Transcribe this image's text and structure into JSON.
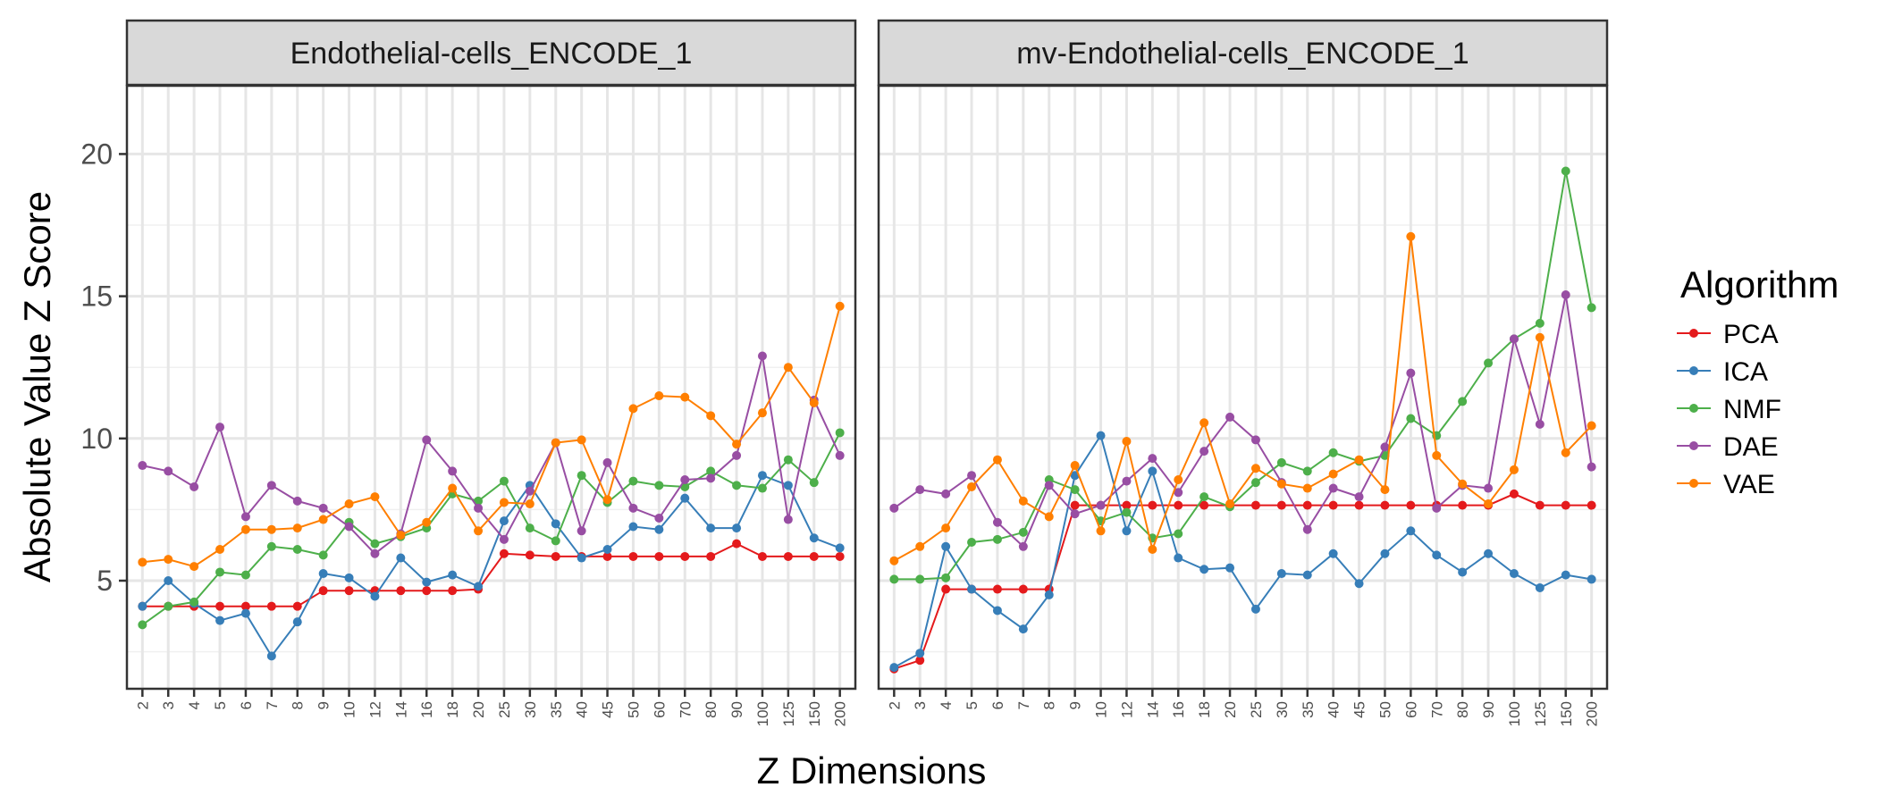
{
  "chart_data": {
    "type": "line",
    "xlabel": "Z Dimensions",
    "ylabel": "Absolute Value Z Score",
    "ylim": [
      1.2,
      22.4
    ],
    "yticks": [
      5,
      10,
      15,
      20
    ],
    "grid": true,
    "legend": {
      "title": "Algorithm",
      "placement": "right"
    },
    "categories": [
      "2",
      "3",
      "4",
      "5",
      "6",
      "7",
      "8",
      "9",
      "10",
      "12",
      "14",
      "16",
      "18",
      "20",
      "25",
      "30",
      "35",
      "40",
      "45",
      "50",
      "60",
      "70",
      "80",
      "90",
      "100",
      "125",
      "150",
      "200"
    ],
    "panels": [
      {
        "title": "Endothelial-cells_ENCODE_1",
        "series": [
          {
            "name": "PCA",
            "color": "#e41a1c",
            "values": [
              4.1,
              4.1,
              4.1,
              4.1,
              4.1,
              4.1,
              4.1,
              4.65,
              4.65,
              4.65,
              4.65,
              4.65,
              4.65,
              4.7,
              5.95,
              5.9,
              5.85,
              5.85,
              5.85,
              5.85,
              5.85,
              5.85,
              5.85,
              6.3,
              5.85,
              5.85,
              5.85,
              5.85
            ]
          },
          {
            "name": "ICA",
            "color": "#377eb8",
            "values": [
              4.1,
              5.0,
              4.2,
              3.6,
              3.85,
              2.35,
              3.55,
              5.25,
              5.1,
              4.45,
              5.8,
              4.95,
              5.2,
              4.8,
              7.1,
              8.35,
              7.0,
              5.8,
              6.1,
              6.9,
              6.8,
              7.9,
              6.85,
              6.85,
              8.7,
              8.35,
              6.5,
              6.15
            ]
          },
          {
            "name": "NMF",
            "color": "#4daf4a",
            "values": [
              3.45,
              4.1,
              4.25,
              5.3,
              5.2,
              6.2,
              6.1,
              5.9,
              7.05,
              6.3,
              6.55,
              6.85,
              8.05,
              7.8,
              8.5,
              6.85,
              6.4,
              8.7,
              7.75,
              8.5,
              8.35,
              8.3,
              8.85,
              8.35,
              8.25,
              9.25,
              8.45,
              10.2
            ]
          },
          {
            "name": "DAE",
            "color": "#984ea3",
            "values": [
              9.05,
              8.85,
              8.3,
              10.4,
              7.25,
              8.35,
              7.8,
              7.55,
              6.9,
              5.95,
              6.65,
              9.95,
              8.85,
              7.55,
              6.45,
              8.15,
              9.85,
              6.75,
              9.15,
              7.55,
              7.2,
              8.55,
              8.6,
              9.4,
              12.9,
              7.15,
              11.35,
              9.4
            ]
          },
          {
            "name": "VAE",
            "color": "#ff7f00",
            "values": [
              5.65,
              5.75,
              5.5,
              6.1,
              6.8,
              6.8,
              6.85,
              7.15,
              7.7,
              7.95,
              6.6,
              7.05,
              8.25,
              6.75,
              7.75,
              7.7,
              9.85,
              9.95,
              7.85,
              11.05,
              11.5,
              11.45,
              10.8,
              9.8,
              10.9,
              12.5,
              11.25,
              14.65
            ]
          }
        ]
      },
      {
        "title": "mv-Endothelial-cells_ENCODE_1",
        "series": [
          {
            "name": "PCA",
            "color": "#e41a1c",
            "values": [
              1.9,
              2.2,
              4.7,
              4.7,
              4.7,
              4.7,
              4.7,
              7.65,
              7.65,
              7.65,
              7.65,
              7.65,
              7.65,
              7.65,
              7.65,
              7.65,
              7.65,
              7.65,
              7.65,
              7.65,
              7.65,
              7.65,
              7.65,
              7.65,
              8.05,
              7.65,
              7.65,
              7.65
            ]
          },
          {
            "name": "ICA",
            "color": "#377eb8",
            "values": [
              1.95,
              2.45,
              6.2,
              4.7,
              3.95,
              3.3,
              4.5,
              8.7,
              10.1,
              6.75,
              8.85,
              5.8,
              5.4,
              5.45,
              4.0,
              5.25,
              5.2,
              5.95,
              4.9,
              5.95,
              6.75,
              5.9,
              5.3,
              5.95,
              5.25,
              4.75,
              5.2,
              5.05
            ]
          },
          {
            "name": "NMF",
            "color": "#4daf4a",
            "values": [
              5.05,
              5.05,
              5.1,
              6.35,
              6.45,
              6.7,
              8.55,
              8.2,
              7.1,
              7.4,
              6.5,
              6.65,
              7.95,
              7.6,
              8.45,
              9.15,
              8.85,
              9.5,
              9.2,
              9.4,
              10.7,
              10.1,
              11.3,
              12.65,
              13.5,
              14.05,
              19.4,
              14.6
            ]
          },
          {
            "name": "DAE",
            "color": "#984ea3",
            "values": [
              7.55,
              8.2,
              8.05,
              8.7,
              7.05,
              6.2,
              8.35,
              7.35,
              7.65,
              8.5,
              9.3,
              8.1,
              9.55,
              10.75,
              9.95,
              8.45,
              6.8,
              8.25,
              7.95,
              9.7,
              12.3,
              7.55,
              8.35,
              8.25,
              13.5,
              10.5,
              15.05,
              9.0
            ]
          },
          {
            "name": "VAE",
            "color": "#ff7f00",
            "values": [
              5.7,
              6.2,
              6.85,
              8.3,
              9.25,
              7.8,
              7.25,
              9.05,
              6.75,
              9.9,
              6.1,
              8.55,
              10.55,
              7.7,
              8.95,
              8.4,
              8.25,
              8.75,
              9.25,
              8.2,
              17.1,
              9.4,
              8.4,
              7.7,
              8.9,
              13.55,
              9.5,
              10.45
            ]
          }
        ]
      }
    ]
  }
}
